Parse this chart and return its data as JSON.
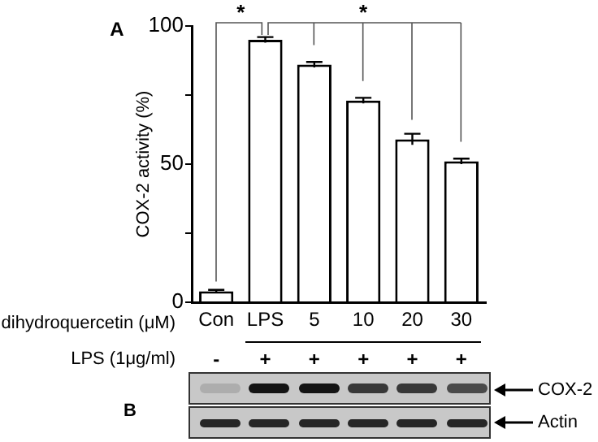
{
  "chart_data": {
    "type": "bar",
    "categories": [
      "Con",
      "LPS",
      "5",
      "10",
      "20",
      "30"
    ],
    "values": [
      4,
      95,
      86,
      73,
      59,
      51
    ],
    "errors": [
      0.5,
      1,
      1,
      1,
      2,
      1
    ],
    "color": "#ffffff",
    "ylabel": "COX-2 activity (%)",
    "xlabel": "dihydroquercetin (μM)",
    "ylim": [
      0,
      100
    ],
    "yticks": [
      0,
      {
        "value": 25,
        "label": null
      },
      50,
      {
        "value": 75,
        "label": null
      },
      100
    ],
    "grid": false,
    "legend": false,
    "annotations": [
      "A",
      "*",
      "*",
      "LPS (1μg/ml)",
      "B",
      "COX-2",
      "Actin",
      "-",
      "+",
      "+",
      "+",
      "+",
      "+"
    ]
  }
}
